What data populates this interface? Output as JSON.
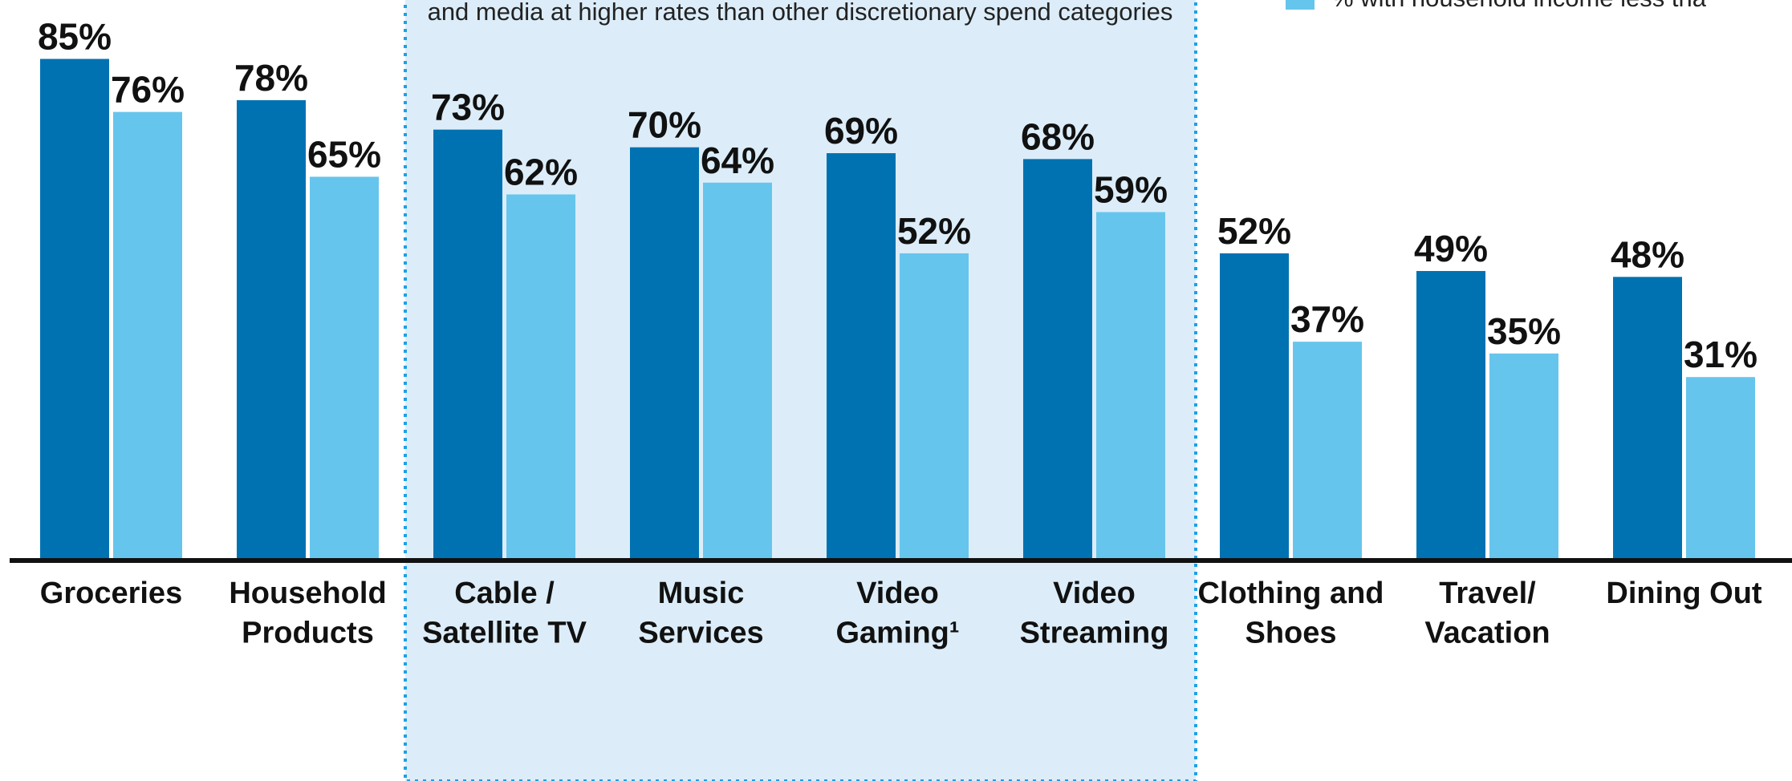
{
  "chart_data": {
    "type": "bar",
    "annotation": "and media at higher rates than other discretionary spend categories",
    "categories": [
      "Groceries",
      "Household\nProducts",
      "Cable /\nSatellite TV",
      "Music\nServices",
      "Video\nGaming¹",
      "Video\nStreaming",
      "Clothing and\nShoes",
      "Travel/\nVacation",
      "Dining Out"
    ],
    "series": [
      {
        "color": "#0072b2",
        "values": [
          85,
          78,
          73,
          70,
          69,
          68,
          52,
          49,
          48
        ],
        "value_labels": [
          "85%",
          "78%",
          "73%",
          "70%",
          "69%",
          "68%",
          "52%",
          "49%",
          "48%"
        ]
      },
      {
        "name": "% with household income less tha",
        "color": "#66c5ec",
        "values": [
          76,
          65,
          62,
          64,
          52,
          59,
          37,
          35,
          31
        ],
        "value_labels": [
          "76%",
          "65%",
          "62%",
          "64%",
          "52%",
          "59%",
          "37%",
          "35%",
          "31%"
        ]
      }
    ],
    "ylim": [
      0,
      95
    ]
  }
}
